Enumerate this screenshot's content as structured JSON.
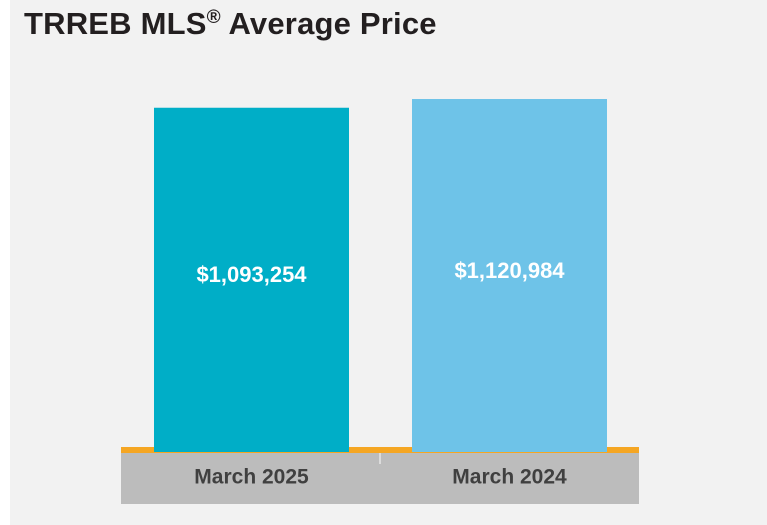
{
  "header": {
    "title": "TRREB MLS",
    "title_mark": "®",
    "title_rest": " Average Price"
  },
  "colors": {
    "bar_1": "#00aec7",
    "bar_2": "#6ec3e8",
    "baseline": "#f5a623",
    "axis_band": "#bcbcbc",
    "label_text": "#404040",
    "value_text": "#ffffff"
  },
  "chart_data": {
    "type": "bar",
    "categories": [
      "March 2025",
      "March 2024"
    ],
    "values": [
      1093254,
      1120984
    ],
    "value_labels": [
      "$1,093,254",
      "$1,120,984"
    ],
    "title": "TRREB MLS® Average Price",
    "xlabel": "",
    "ylabel": "",
    "ylim": [
      0,
      1175000
    ],
    "grid": false,
    "legend": "none"
  }
}
